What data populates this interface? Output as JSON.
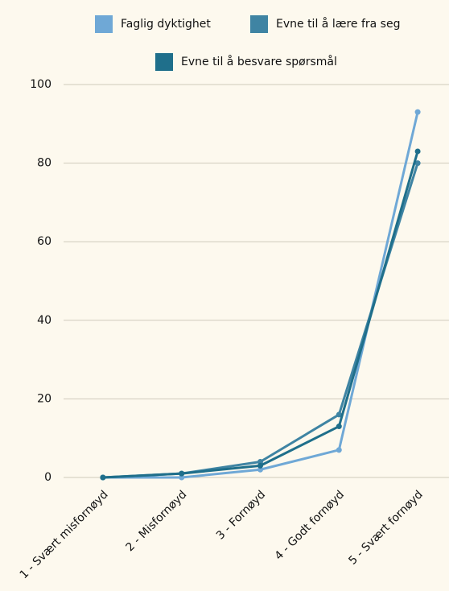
{
  "chart_data": {
    "type": "line",
    "categories": [
      "1 - Svært misfornøyd",
      "2 - Misfornøyd",
      "3 - Fornøyd",
      "4 - Godt fornøyd",
      "5 - Svært fornøyd"
    ],
    "series": [
      {
        "name": "Faglig dyktighet",
        "color": "#6fa8d6",
        "values": [
          0,
          0,
          2,
          7,
          93
        ]
      },
      {
        "name": "Evne til å lære fra seg",
        "color": "#3f84a3",
        "values": [
          0,
          1,
          4,
          16,
          80
        ]
      },
      {
        "name": "Evne til å besvare spørsmål",
        "color": "#1f6f8b",
        "values": [
          0,
          1,
          3,
          13,
          83
        ]
      }
    ],
    "ylim": [
      0,
      100
    ],
    "yticks": [
      0,
      20,
      40,
      60,
      80,
      100
    ],
    "grid": true,
    "legend": "top"
  }
}
